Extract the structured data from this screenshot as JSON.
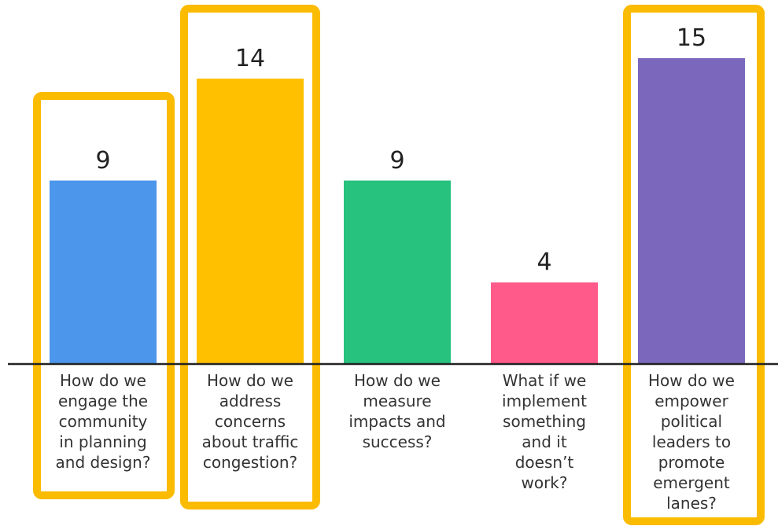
{
  "chart_data": {
    "type": "bar",
    "categories": [
      "How do we\nengage the\ncommunity\nin planning\nand design?",
      "How do we\naddress\nconcerns\nabout traffic\ncongestion?",
      "How do we\nmeasure\nimpacts and\nsuccess?",
      "What if we\nimplement\nsomething\nand it\ndoesn’t\nwork?",
      "How do we\nempower\npolitical\nleaders to\npromote\nemergent\nlanes?"
    ],
    "values": [
      9,
      14,
      9,
      4,
      15
    ],
    "colors": [
      "#4C96EC",
      "#FFC000",
      "#27C27E",
      "#FF5A8A",
      "#7B68BD"
    ],
    "highlight_color": "#FBBB00",
    "highlighted": [
      true,
      true,
      false,
      false,
      true
    ],
    "ylim": [
      0,
      15
    ],
    "grid": false,
    "title": "",
    "xlabel": "",
    "ylabel": ""
  }
}
